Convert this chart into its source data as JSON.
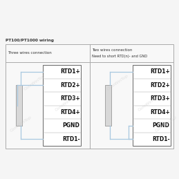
{
  "title": "PT100/PT1000 wiring",
  "left_section_title": "Three wires connection",
  "right_section_title": "Two wires connection",
  "right_section_subtitle": "Need to short RTD(n)- and GND",
  "terminal_labels": [
    "RTD1+",
    "RTD2+",
    "RTD3+",
    "RTD4+",
    "PGND",
    "RTD1-"
  ],
  "watermark": "ComWinTop",
  "bg_color": "#f5f5f5",
  "border_color": "#aaaaaa",
  "terminal_box_color": "#ffffff",
  "resistor_fill": "#d8d8d8",
  "resistor_edge": "#999999",
  "wire_color": "#a8c8e0",
  "text_color": "#333333",
  "title_color": "#333333",
  "label_fontsize": 5.5,
  "header_fontsize": 4.0,
  "title_fontsize": 4.2,
  "watermark_color": "#cccccc",
  "watermark_alpha": 0.55
}
